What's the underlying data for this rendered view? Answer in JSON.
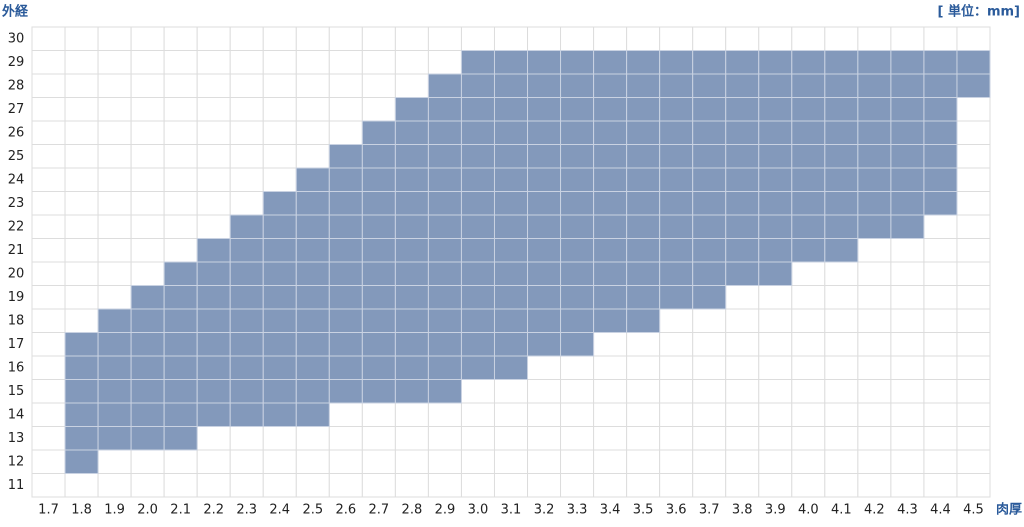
{
  "chart_data": {
    "type": "range_grid",
    "y_label": "外経",
    "unit_label": "[ 単位：mm]",
    "x_label": "肉厚",
    "categories": [
      "1.7",
      "1.8",
      "1.9",
      "2.0",
      "2.1",
      "2.2",
      "2.3",
      "2.4",
      "2.5",
      "2.6",
      "2.7",
      "2.8",
      "2.9",
      "3.0",
      "3.1",
      "3.2",
      "3.3",
      "3.4",
      "3.5",
      "3.6",
      "3.7",
      "3.8",
      "3.9",
      "4.0",
      "4.1",
      "4.2",
      "4.3",
      "4.4",
      "4.5"
    ],
    "ranges": [
      null,
      [
        12,
        17
      ],
      [
        13,
        18
      ],
      [
        13,
        19
      ],
      [
        13,
        20
      ],
      [
        14,
        21
      ],
      [
        14,
        22
      ],
      [
        14,
        23
      ],
      [
        14,
        24
      ],
      [
        15,
        25
      ],
      [
        15,
        26
      ],
      [
        15,
        27
      ],
      [
        15,
        28
      ],
      [
        16,
        29
      ],
      [
        16,
        29
      ],
      [
        17,
        29
      ],
      [
        17,
        29
      ],
      [
        18,
        29
      ],
      [
        18,
        29
      ],
      [
        19,
        29
      ],
      [
        19,
        29
      ],
      [
        20,
        29
      ],
      [
        20,
        29
      ],
      [
        21,
        29
      ],
      [
        21,
        29
      ],
      [
        22,
        29
      ],
      [
        22,
        29
      ],
      [
        23,
        29
      ],
      [
        28,
        29
      ]
    ],
    "color": "#8399bb",
    "ylim": [
      10.5,
      30.5
    ],
    "yticks": [
      11,
      12,
      13,
      14,
      15,
      16,
      17,
      18,
      19,
      20,
      21,
      22,
      23,
      24,
      25,
      26,
      27,
      28,
      29,
      30
    ]
  }
}
